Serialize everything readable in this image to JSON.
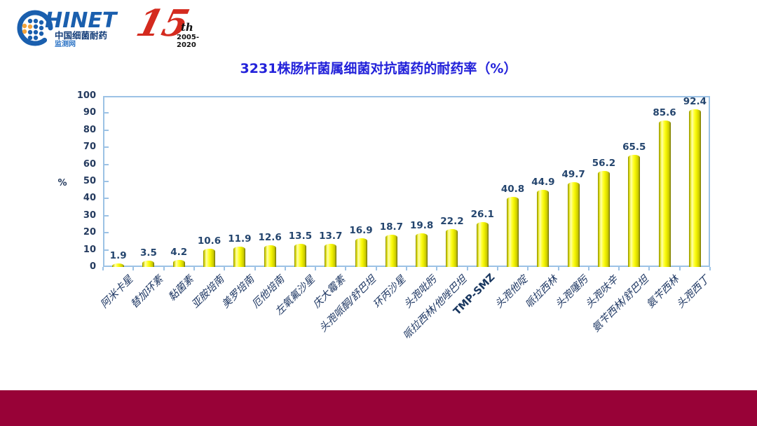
{
  "header": {
    "logo": {
      "brand_text": "HINET",
      "subtitle": "中国细菌耐药",
      "subtitle2": "监测网"
    },
    "anniversary": {
      "number": "15",
      "suffix": "th",
      "years": "2005-2020"
    }
  },
  "title": "3231株肠杆菌属细菌对抗菌药的耐药率（%）",
  "chart_data": {
    "type": "bar",
    "title": "3231株肠杆菌属细菌对抗菌药的耐药率（%）",
    "xlabel": "",
    "ylabel": "%",
    "ylim": [
      0,
      100
    ],
    "yticks": [
      0,
      10,
      20,
      30,
      40,
      50,
      60,
      70,
      80,
      90,
      100
    ],
    "grid": false,
    "legend": "none",
    "bar_style": "yellow-cylinder",
    "categories": [
      "阿米卡星",
      "替加环素",
      "黏菌素",
      "亚胺培南",
      "美罗培南",
      "厄他培南",
      "左氧氟沙星",
      "庆大霉素",
      "头孢哌酮/舒巴坦",
      "环丙沙星",
      "头孢吡肟",
      "哌拉西林/他唑巴坦",
      "TMP-SMZ",
      "头孢他啶",
      "哌拉西林",
      "头孢噻肟",
      "头孢呋辛",
      "氨苄西林/舒巴坦",
      "氨苄西林",
      "头孢西丁"
    ],
    "values": [
      1.9,
      3.5,
      4.2,
      10.6,
      11.9,
      12.6,
      13.5,
      13.7,
      16.9,
      18.7,
      19.8,
      22.2,
      26.1,
      40.8,
      44.9,
      49.7,
      56.2,
      65.5,
      85.6,
      92.4
    ]
  },
  "colors": {
    "title_blue": "#2322da",
    "axis_blue": "#9cc2e5",
    "navy_text": "#243a5e",
    "bar_yellow": "#ffff00",
    "bar_edge_olive": "#7e7e00",
    "footer_maroon": "#980237",
    "logo_blue": "#1a5fae",
    "logo_orange": "#f2a33c",
    "anniversary_red": "#d42a1e"
  }
}
